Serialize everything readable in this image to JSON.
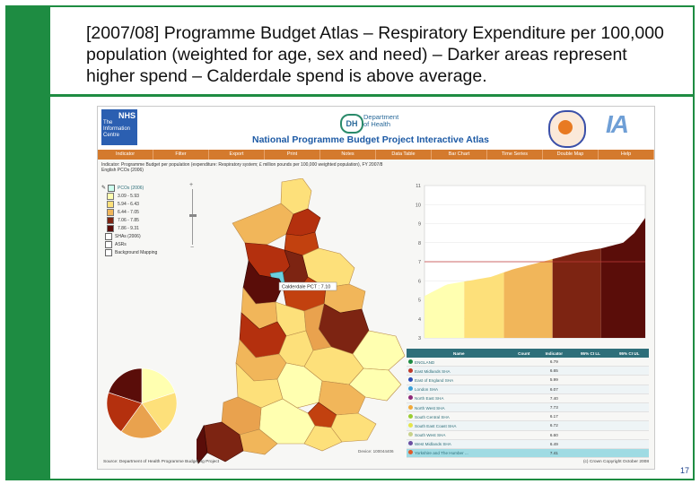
{
  "slide": {
    "title": "[2007/08] Programme Budget Atlas – Respiratory Expenditure per 100,000 population (weighted for age, sex and need) – Darker areas represent higher spend – Calderdale spend is above average.",
    "page_number": "17",
    "colors": {
      "frame": "#1e8c42"
    }
  },
  "atlas": {
    "nhs_logo": {
      "brand": "NHS",
      "org_line1": "The",
      "org_line2": "Information",
      "org_line3": "Centre"
    },
    "dh": {
      "badge": "DH",
      "line1": "Department",
      "line2": "of Health"
    },
    "title": "National Programme Budget Project Interactive Atlas",
    "ia_logo": "IA",
    "menu": [
      "Indicator",
      "Filter",
      "Export",
      "Print",
      "Notes",
      "Data Table",
      "Bar Chart",
      "Time Series",
      "Double Map",
      "Help"
    ],
    "indicator_line": "Indicator: Programme Budget per population (expenditure: Respiratory system; £ million pounds per 100,000 weighted population), FY 2007/8",
    "region_line": "English PCOs (2006)",
    "legend": {
      "layer_title": "PCOs (2006)",
      "classes": [
        {
          "label": "3.09 - 5.93",
          "color": "#ffffb0"
        },
        {
          "label": "5.94 - 6.43",
          "color": "#fde07a"
        },
        {
          "label": "6.44 - 7.05",
          "color": "#f1b65a"
        },
        {
          "label": "7.06 - 7.85",
          "color": "#7d2412"
        },
        {
          "label": "7.86 - 9.31",
          "color": "#5a0d09"
        }
      ],
      "other_layers": [
        "SHAs (2006)",
        "ASRs",
        "Background Mapping"
      ]
    },
    "map_tooltip": "Calderdale PCT : 7.10",
    "chart_data": {
      "type": "area",
      "title": "",
      "xlabel": "",
      "ylabel": "",
      "ylim": [
        3,
        11
      ],
      "yticks": [
        3,
        4,
        5,
        6,
        7,
        8,
        9,
        10,
        11
      ],
      "reference_line": 7.0,
      "x": [
        0,
        0.1,
        0.2,
        0.3,
        0.35,
        0.4,
        0.5,
        0.6,
        0.7,
        0.8,
        0.9,
        0.95,
        1.0
      ],
      "values": [
        5.2,
        5.8,
        6.0,
        6.2,
        6.4,
        6.6,
        6.9,
        7.2,
        7.5,
        7.7,
        8.0,
        8.5,
        9.3
      ],
      "bands": [
        {
          "from": 0.0,
          "to": 0.18,
          "color": "#ffffb0"
        },
        {
          "from": 0.18,
          "to": 0.36,
          "color": "#fde07a"
        },
        {
          "from": 0.36,
          "to": 0.58,
          "color": "#f1b65a"
        },
        {
          "from": 0.58,
          "to": 0.8,
          "color": "#7d2412"
        },
        {
          "from": 0.8,
          "to": 1.0,
          "color": "#5a0d09"
        }
      ]
    },
    "pie": [
      {
        "value": 20,
        "color": "#ffffb0"
      },
      {
        "value": 20,
        "color": "#fde07a"
      },
      {
        "value": 20,
        "color": "#e9a24e"
      },
      {
        "value": 20,
        "color": "#b4300e"
      },
      {
        "value": 20,
        "color": "#5a0d09"
      }
    ],
    "table": {
      "headers": [
        "Name",
        "Count",
        "Indicator",
        "95% CI LL",
        "95% CI UL"
      ],
      "rows": [
        {
          "name": "ENGLAND",
          "count": "",
          "indicator": "6.79",
          "dot": "#1e8c42"
        },
        {
          "name": "East Midlands SHA",
          "count": "",
          "indicator": "6.65",
          "dot": "#c0392b"
        },
        {
          "name": "East of England SHA",
          "count": "",
          "indicator": "5.99",
          "dot": "#2d4cb5"
        },
        {
          "name": "London SHA",
          "count": "",
          "indicator": "6.07",
          "dot": "#3aa0d8"
        },
        {
          "name": "North East SHA",
          "count": "",
          "indicator": "7.40",
          "dot": "#8e2a7a"
        },
        {
          "name": "North West SHA",
          "count": "",
          "indicator": "7.73",
          "dot": "#f2a93b"
        },
        {
          "name": "South Central SHA",
          "count": "",
          "indicator": "6.17",
          "dot": "#9acd32"
        },
        {
          "name": "South East Coast SHA",
          "count": "",
          "indicator": "6.72",
          "dot": "#e5e54a"
        },
        {
          "name": "South West SHA",
          "count": "",
          "indicator": "6.60",
          "dot": "#c8d28a"
        },
        {
          "name": "West Midlands SHA",
          "count": "",
          "indicator": "6.49",
          "dot": "#6b4fa1"
        },
        {
          "name": "Yorkshire and The Humber ...",
          "count": "",
          "indicator": "7.41",
          "dot": "#e05a2a"
        }
      ]
    },
    "device_label": "Device: 100044406",
    "source": "Source: Department of Health Programme Budgeting Project",
    "copyright": "(c) Crown Copyright October 2008"
  }
}
